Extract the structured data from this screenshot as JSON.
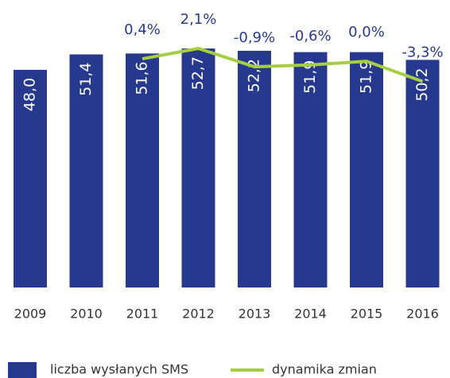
{
  "chart_data": {
    "type": "bar_line",
    "categories": [
      "2009",
      "2010",
      "2011",
      "2012",
      "2013",
      "2014",
      "2015",
      "2016"
    ],
    "ylim": [
      0,
      60
    ],
    "y2lim": [
      -37,
      7.5
    ],
    "series": [
      {
        "name": "liczba wysłanych SMS",
        "color": "#27398f",
        "type": "bar",
        "values": [
          48.0,
          51.4,
          51.6,
          52.7,
          52.2,
          51.9,
          51.9,
          50.2
        ],
        "value_labels": [
          "48,0",
          "51,4",
          "51,6",
          "52,7",
          "52,2",
          "51,9",
          "51,9",
          "50,2"
        ]
      },
      {
        "name": "dynamika zmian",
        "color": "#a6ce42",
        "type": "line",
        "axis": "y2",
        "values": [
          null,
          null,
          0.4,
          2.1,
          -0.9,
          -0.6,
          0.0,
          -3.3
        ],
        "value_labels": [
          null,
          null,
          "0,4%",
          "2,1%",
          "-0,9%",
          "-0,6%",
          "0,0%",
          "-3,3%"
        ]
      }
    ]
  }
}
